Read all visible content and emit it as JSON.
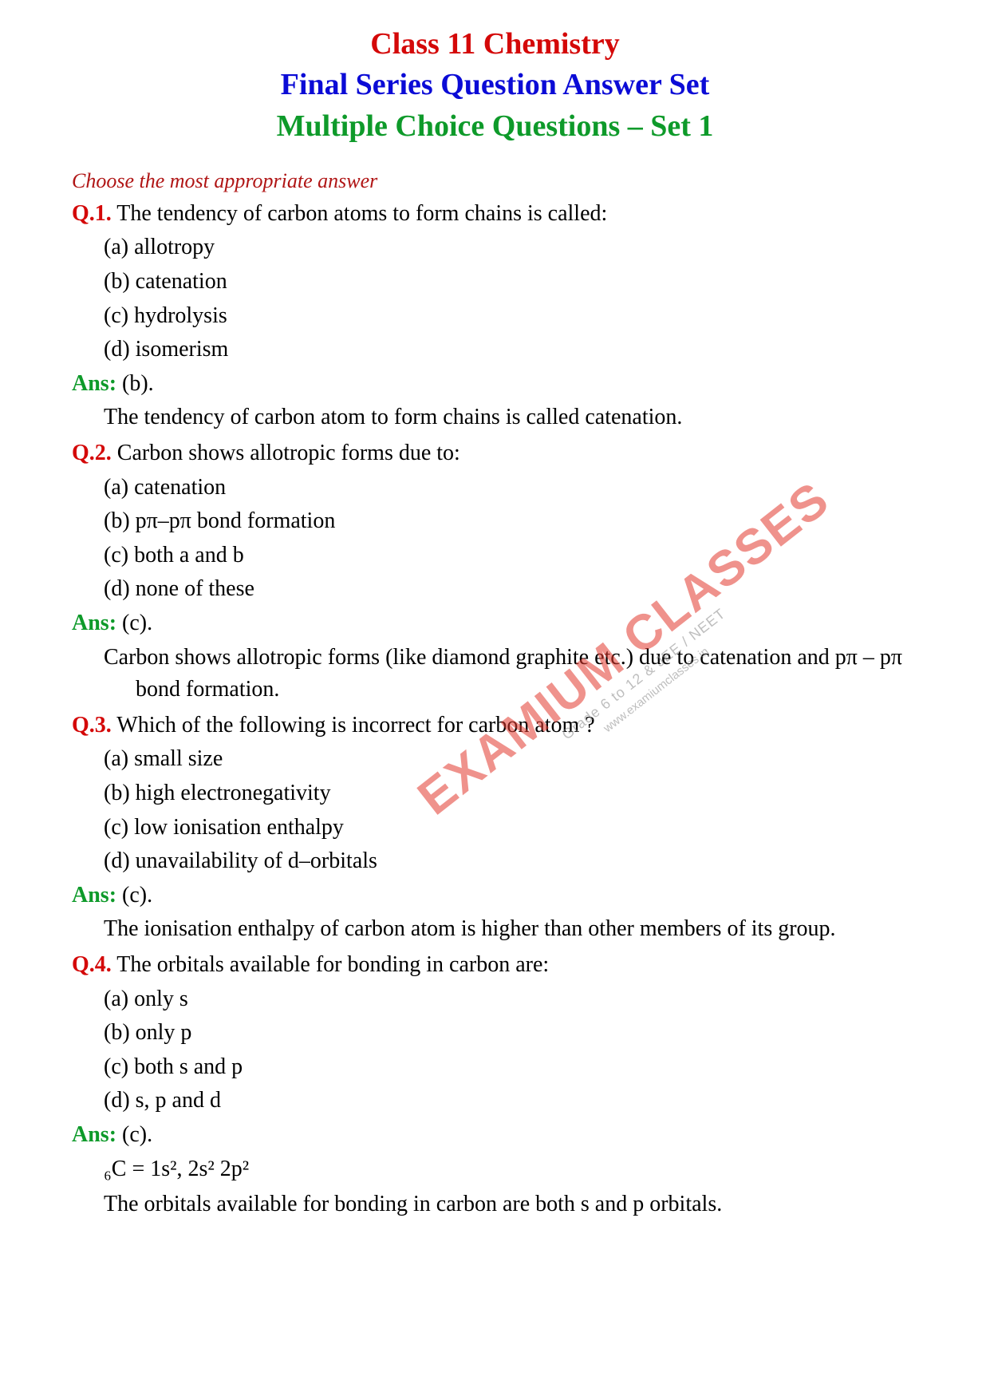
{
  "colors": {
    "red": "#d40808",
    "blue": "#0b0bd6",
    "green": "#0e9a2a",
    "darkred_instruction": "#b01515",
    "black": "#000000",
    "wm_red": "#e33a2f",
    "wm_gray": "#8a8a8a"
  },
  "header": {
    "line1": "Class 11 Chemistry",
    "line2": "Final Series Question Answer Set",
    "line3": "Multiple Choice Questions – Set 1"
  },
  "instruction": "Choose the most appropriate answer",
  "watermark": {
    "main": "EXAMIUM CLASSES",
    "sub": "Grade 6 to 12 & JEE / NEET",
    "url": "www.examiumclasses.in"
  },
  "questions": [
    {
      "num": "Q.1.",
      "text": "The tendency of carbon atoms to form chains is called:",
      "options": [
        "(a) allotropy",
        "(b) catenation",
        "(c) hydrolysis",
        "(d) isomerism"
      ],
      "ans": "(b).",
      "explanation": [
        "The tendency of carbon atom to form chains is called catenation."
      ]
    },
    {
      "num": "Q.2.",
      "text": "Carbon shows allotropic forms due to:",
      "options": [
        "(a) catenation",
        "(b) pπ–pπ  bond formation",
        "(c) both a and b",
        "(d) none of these"
      ],
      "ans": "(c).",
      "explanation": [
        "Carbon shows allotropic forms (like diamond graphite etc.) due to catenation and pπ – pπ bond formation."
      ]
    },
    {
      "num": "Q.3.",
      "text": "Which of the following is incorrect for carbon atom ?",
      "options": [
        "(a) small size",
        "(b) high electronegativity",
        "(c) low ionisation enthalpy",
        "(d) unavailability of d–orbitals"
      ],
      "ans": "(c).",
      "explanation": [
        "The ionisation enthalpy of carbon atom is higher than other members of its group."
      ]
    },
    {
      "num": "Q.4.",
      "text": "The orbitals available for bonding in carbon are:",
      "options": [
        "(a) only s",
        "(b) only p",
        "(c) both s and p",
        "(d) s, p and d"
      ],
      "ans": "(c).",
      "explanation": [
        "₆C = 1s², 2s² 2p²",
        "The orbitals available for bonding in carbon are both s and p orbitals."
      ]
    }
  ]
}
